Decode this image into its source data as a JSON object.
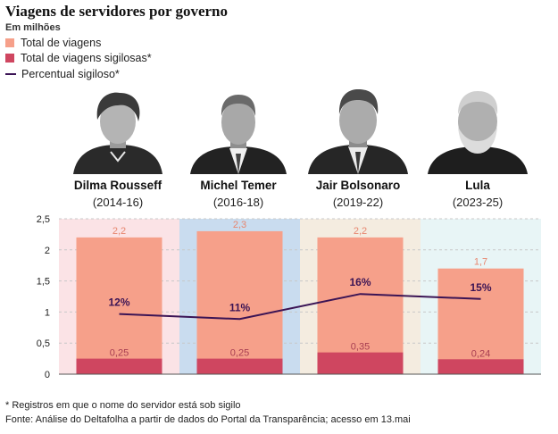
{
  "title": "Viagens de servidores por governo",
  "unit_label": "Em milhões",
  "legend": [
    {
      "label": "Total de viagens",
      "color": "#f6a08a",
      "kind": "box"
    },
    {
      "label": "Total de viagens sigilosas*",
      "color": "#cf4660",
      "kind": "box"
    },
    {
      "label": "Percentual sigiloso*",
      "color": "#3b1455",
      "kind": "line"
    }
  ],
  "governments": [
    {
      "name": "Dilma Rousseff",
      "period": "(2014-16)",
      "bg": "#fbe3e6"
    },
    {
      "name": "Michel Temer",
      "period": "(2016-18)",
      "bg": "#c9dcef"
    },
    {
      "name": "Jair Bolsonaro",
      "period": "(2019-22)",
      "bg": "#f4ece0"
    },
    {
      "name": "Lula",
      "period": "(2023-25)",
      "bg": "#e8f5f6"
    }
  ],
  "chart_data": {
    "type": "bar",
    "categories": [
      "Dilma Rousseff",
      "Michel Temer",
      "Jair Bolsonaro",
      "Lula"
    ],
    "series": [
      {
        "name": "Total de viagens",
        "values": [
          2.2,
          2.3,
          2.2,
          1.7
        ],
        "labels": [
          "2,2",
          "2,3",
          "2,2",
          "1,7"
        ],
        "color": "#f6a08a"
      },
      {
        "name": "Total de viagens sigilosas*",
        "values": [
          0.25,
          0.25,
          0.35,
          0.24
        ],
        "labels": [
          "0,25",
          "0,25",
          "0,35",
          "0,24"
        ],
        "color": "#cf4660"
      },
      {
        "name": "Percentual sigiloso*",
        "values": [
          12,
          11,
          16,
          15
        ],
        "labels": [
          "12%",
          "11%",
          "16%",
          "15%"
        ],
        "color": "#3b1455",
        "kind": "line"
      }
    ],
    "ylim": [
      0,
      2.5
    ],
    "yticks": [
      0,
      0.5,
      1,
      1.5,
      2,
      2.5
    ],
    "ytick_labels": [
      "0",
      "0,5",
      "1",
      "1,5",
      "2",
      "2,5"
    ],
    "percent_range": [
      0,
      31
    ],
    "grid": true
  },
  "footnotes": {
    "note": "* Registros em que o nome do servidor está sob sigilo",
    "source": "Fonte: Análise do Deltafolha a partir de dados do Portal da Transparência; acesso em 13.mai"
  }
}
